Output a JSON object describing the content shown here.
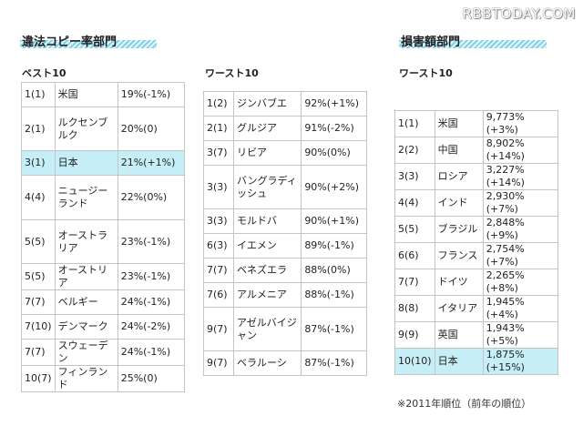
{
  "watermark": "RBBTODAY.COM",
  "sections": {
    "piracy_title": "違法コピー率部門",
    "damage_title": "損害額部門"
  },
  "best": {
    "label": "ベスト10",
    "rows": [
      {
        "rank": "1(1)",
        "country": "米国",
        "value": "19%(-1%)"
      },
      {
        "rank": "2(1)",
        "country": "ルクセンブルク",
        "value": "20%(0)"
      },
      {
        "rank": "3(1)",
        "country": "日本",
        "value": "21%(+1%)"
      },
      {
        "rank": "4(4)",
        "country": "ニュージーランド",
        "value": "22%(0%)"
      },
      {
        "rank": "5(5)",
        "country": "オーストラリア",
        "value": "23%(-1%)"
      },
      {
        "rank": "5(5)",
        "country": "オーストリア",
        "value": "23%(-1%)"
      },
      {
        "rank": "7(7)",
        "country": "ベルギー",
        "value": "24%(-1%)"
      },
      {
        "rank": "7(10)",
        "country": "デンマーク",
        "value": "24%(-2%)"
      },
      {
        "rank": "7(7)",
        "country": "スウェーデン",
        "value": "24%(-1%)"
      },
      {
        "rank": "10(7)",
        "country": "フィンランド",
        "value": "25%(0)"
      }
    ]
  },
  "worst": {
    "label": "ワースト10",
    "rows": [
      {
        "rank": "1(2)",
        "country": "ジンバブエ",
        "value": "92%(+1%)"
      },
      {
        "rank": "2(1)",
        "country": "グルジア",
        "value": "91%(-2%)"
      },
      {
        "rank": "3(7)",
        "country": "リビア",
        "value": "90%(0%)"
      },
      {
        "rank": "3(3)",
        "country": "バングラディッシュ",
        "value": "90%(+2%)"
      },
      {
        "rank": "3(3)",
        "country": "モルドバ",
        "value": "90%(+1%)"
      },
      {
        "rank": "6(3)",
        "country": "イエメン",
        "value": "89%(-1%)"
      },
      {
        "rank": "7(7)",
        "country": "ベネズエラ",
        "value": "88%(0%)"
      },
      {
        "rank": "7(6)",
        "country": "アルメニア",
        "value": "88%(-1%)"
      },
      {
        "rank": "9(7)",
        "country": "アゼルバイジャン",
        "value": "87%(-1%)"
      },
      {
        "rank": "9(7)",
        "country": "ベラルーシ",
        "value": "87%(-1%)"
      }
    ]
  },
  "damage": {
    "label": "ワースト10",
    "rows": [
      {
        "rank": "1(1)",
        "country": "米国",
        "value": "9,773%(+3%)"
      },
      {
        "rank": "2(2)",
        "country": "中国",
        "value": "8,902%(+14%)"
      },
      {
        "rank": "3(3)",
        "country": "ロシア",
        "value": "3,227%(+14%)"
      },
      {
        "rank": "4(4)",
        "country": "インド",
        "value": "2,930%(+7%)"
      },
      {
        "rank": "5(5)",
        "country": "ブラジル",
        "value": "2,848%(+9%)"
      },
      {
        "rank": "6(6)",
        "country": "フランス",
        "value": "2,754%(+7%)"
      },
      {
        "rank": "7(7)",
        "country": "ドイツ",
        "value": "2,265%(+8%)"
      },
      {
        "rank": "8(8)",
        "country": "イタリア",
        "value": "1,945%(+4%)"
      },
      {
        "rank": "9(9)",
        "country": "英国",
        "value": "1,943%(+5%)"
      },
      {
        "rank": "10(10)",
        "country": "日本",
        "value": "1,875%(+15%)"
      }
    ]
  },
  "note": "※2011年順位（前年の順位）"
}
